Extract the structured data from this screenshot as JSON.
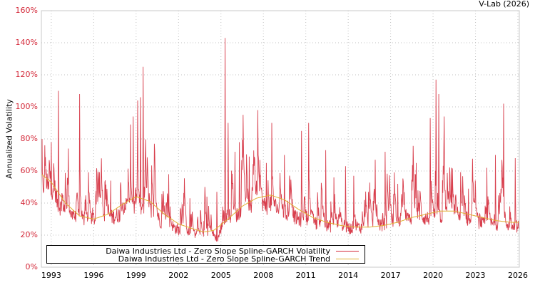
{
  "chart_data": {
    "type": "line",
    "title": "",
    "credit": "V-Lab (2026)",
    "xlabel": "",
    "ylabel": "Annualized Volatility",
    "ylim": [
      0,
      160
    ],
    "xlim": [
      1992.3,
      2026.1
    ],
    "y_ticks": [
      "0%",
      "20%",
      "40%",
      "60%",
      "80%",
      "100%",
      "120%",
      "140%",
      "160%"
    ],
    "x_ticks": [
      "1993",
      "1996",
      "1999",
      "2002",
      "2005",
      "2008",
      "2011",
      "2014",
      "2017",
      "2020",
      "2023",
      "2026"
    ],
    "grid": true,
    "legend_position": "bottom-left inside",
    "series": [
      {
        "name": "Daiwa Industries Ltd - Zero Slope Spline-GARCH Volatility",
        "color": "#d42a3a",
        "baseline_approx": [
          [
            1992.3,
            55
          ],
          [
            1993.5,
            40
          ],
          [
            1995,
            29
          ],
          [
            1997,
            31
          ],
          [
            1999,
            38
          ],
          [
            2001,
            28
          ],
          [
            2003,
            20
          ],
          [
            2004.8,
            19
          ],
          [
            2005.2,
            30
          ],
          [
            2007,
            36
          ],
          [
            2008.5,
            40
          ],
          [
            2010,
            32
          ],
          [
            2012,
            27
          ],
          [
            2014,
            25
          ],
          [
            2016,
            26
          ],
          [
            2018,
            29
          ],
          [
            2020,
            32
          ],
          [
            2021.5,
            31
          ],
          [
            2023,
            28
          ],
          [
            2025,
            27
          ],
          [
            2026.1,
            26
          ]
        ],
        "spikes": [
          [
            1992.35,
            80
          ],
          [
            1993.0,
            78
          ],
          [
            1993.5,
            110
          ],
          [
            1994.2,
            74
          ],
          [
            1995.0,
            108
          ],
          [
            1996.3,
            47
          ],
          [
            1997.2,
            54
          ],
          [
            1998.6,
            89
          ],
          [
            1998.8,
            94
          ],
          [
            1999.1,
            104
          ],
          [
            1999.3,
            106
          ],
          [
            1999.5,
            125
          ],
          [
            2000.3,
            77
          ],
          [
            2001.3,
            58
          ],
          [
            2002.8,
            43
          ],
          [
            2004.0,
            44
          ],
          [
            2004.7,
            47
          ],
          [
            2005.3,
            143
          ],
          [
            2005.5,
            90
          ],
          [
            2006.0,
            72
          ],
          [
            2006.3,
            78
          ],
          [
            2007.0,
            69
          ],
          [
            2007.6,
            98
          ],
          [
            2008.2,
            65
          ],
          [
            2008.6,
            90
          ],
          [
            2009.5,
            70
          ],
          [
            2010.7,
            85
          ],
          [
            2011.2,
            90
          ],
          [
            2012.4,
            73
          ],
          [
            2013.0,
            56
          ],
          [
            2013.8,
            63
          ],
          [
            2014.4,
            57
          ],
          [
            2015.9,
            67
          ],
          [
            2016.6,
            72
          ],
          [
            2017.5,
            52
          ],
          [
            2018.8,
            65
          ],
          [
            2019.8,
            93
          ],
          [
            2020.2,
            117
          ],
          [
            2020.4,
            108
          ],
          [
            2020.8,
            94
          ],
          [
            2021.3,
            62
          ],
          [
            2022.5,
            49
          ],
          [
            2023.8,
            62
          ],
          [
            2024.4,
            70
          ],
          [
            2025.0,
            102
          ],
          [
            2025.8,
            68
          ]
        ]
      },
      {
        "name": "Daiwa Industries Ltd - Zero Slope Spline-GARCH Trend",
        "color": "#e0b030",
        "points": [
          [
            1992.3,
            58
          ],
          [
            1993.0,
            53
          ],
          [
            1994.0,
            40
          ],
          [
            1995.0,
            32
          ],
          [
            1996.0,
            30
          ],
          [
            1997.0,
            33
          ],
          [
            1998.0,
            39
          ],
          [
            1999.0,
            44
          ],
          [
            2000.0,
            41
          ],
          [
            2001.0,
            33
          ],
          [
            2002.0,
            27
          ],
          [
            2003.0,
            24
          ],
          [
            2003.8,
            22
          ],
          [
            2004.5,
            23
          ],
          [
            2005.5,
            30
          ],
          [
            2006.5,
            38
          ],
          [
            2007.5,
            43
          ],
          [
            2008.5,
            45
          ],
          [
            2009.5,
            42
          ],
          [
            2010.5,
            36
          ],
          [
            2011.5,
            31
          ],
          [
            2012.5,
            28
          ],
          [
            2013.5,
            26
          ],
          [
            2014.5,
            25
          ],
          [
            2015.5,
            25
          ],
          [
            2016.5,
            26
          ],
          [
            2017.5,
            28
          ],
          [
            2018.5,
            31
          ],
          [
            2019.5,
            33
          ],
          [
            2020.5,
            35
          ],
          [
            2021.5,
            35
          ],
          [
            2022.5,
            33
          ],
          [
            2023.5,
            31
          ],
          [
            2024.5,
            29
          ],
          [
            2025.5,
            28
          ],
          [
            2026.1,
            28
          ]
        ]
      }
    ]
  },
  "legend": {
    "items": [
      {
        "label": "Daiwa Industries Ltd - Zero Slope Spline-GARCH Volatility",
        "color": "#d42a3a"
      },
      {
        "label": "Daiwa Industries Ltd - Zero Slope Spline-GARCH Trend",
        "color": "#e0b030"
      }
    ]
  }
}
